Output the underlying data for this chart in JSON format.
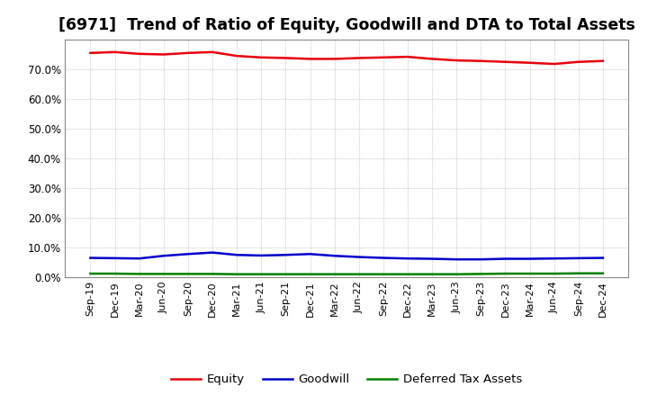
{
  "title": "[6971]  Trend of Ratio of Equity, Goodwill and DTA to Total Assets",
  "x_labels": [
    "Sep-19",
    "Dec-19",
    "Mar-20",
    "Jun-20",
    "Sep-20",
    "Dec-20",
    "Mar-21",
    "Jun-21",
    "Sep-21",
    "Dec-21",
    "Mar-22",
    "Jun-22",
    "Sep-22",
    "Dec-22",
    "Mar-23",
    "Jun-23",
    "Sep-23",
    "Dec-23",
    "Mar-24",
    "Jun-24",
    "Sep-24",
    "Dec-24"
  ],
  "equity": [
    75.5,
    75.8,
    75.2,
    75.0,
    75.5,
    75.8,
    74.5,
    74.0,
    73.8,
    73.5,
    73.5,
    73.8,
    74.0,
    74.2,
    73.5,
    73.0,
    72.8,
    72.5,
    72.2,
    71.8,
    72.5,
    72.8
  ],
  "goodwill": [
    6.5,
    6.4,
    6.3,
    7.2,
    7.8,
    8.3,
    7.5,
    7.3,
    7.5,
    7.8,
    7.2,
    6.8,
    6.5,
    6.3,
    6.2,
    6.0,
    6.0,
    6.2,
    6.2,
    6.3,
    6.4,
    6.5
  ],
  "dta": [
    1.2,
    1.2,
    1.1,
    1.1,
    1.1,
    1.1,
    1.0,
    1.0,
    1.0,
    1.0,
    1.0,
    1.0,
    1.0,
    1.0,
    1.0,
    1.0,
    1.1,
    1.2,
    1.2,
    1.2,
    1.3,
    1.3
  ],
  "equity_color": "#e8000d",
  "goodwill_color": "#0000cd",
  "dta_color": "#008000",
  "background_color": "#ffffff",
  "plot_bg_color": "#ffffff",
  "grid_color": "#a0a0a0",
  "ylim": [
    0,
    80
  ],
  "yticks": [
    0,
    10,
    20,
    30,
    40,
    50,
    60,
    70
  ],
  "ytick_labels": [
    "0.0%",
    "10.0%",
    "20.0%",
    "30.0%",
    "40.0%",
    "50.0%",
    "60.0%",
    "70.0%"
  ],
  "legend_labels": [
    "Equity",
    "Goodwill",
    "Deferred Tax Assets"
  ],
  "title_fontsize": 12.5,
  "axis_fontsize": 8.5,
  "legend_fontsize": 9.5,
  "line_width": 1.8
}
